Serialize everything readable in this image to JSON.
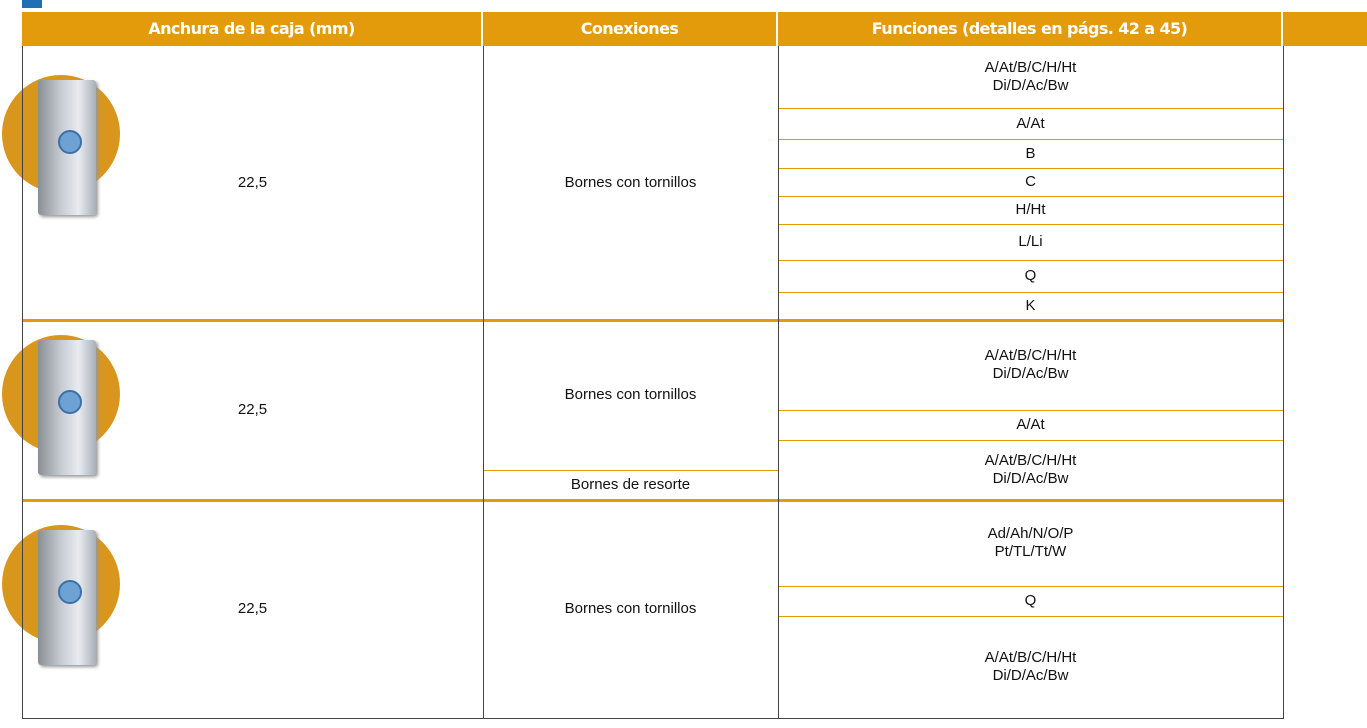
{
  "table": {
    "header": [
      "Anchura de la caja (mm)",
      "Conexiones",
      "Funciones (detalles en págs. 42 a 45)"
    ],
    "groups": [
      {
        "width": "22,5",
        "connections": [
          "Bornes con tornillos"
        ],
        "functions": [
          "A/At/B/C/H/Ht\nDi/D/Ac/Bw",
          "A/At",
          "B",
          "C",
          "H/Ht",
          "L/Li",
          "Q",
          "K"
        ]
      },
      {
        "width": "22,5",
        "connections": [
          "Bornes con tornillos",
          "Bornes de resorte"
        ],
        "functions": [
          "A/At/B/C/H/Ht\nDi/D/Ac/Bw",
          "A/At",
          "A/At/B/C/H/Ht\nDi/D/Ac/Bw"
        ]
      },
      {
        "width": "22,5",
        "connections": [
          "Bornes con tornillos"
        ],
        "functions": [
          "Ad/Ah/N/O/P\nPt/TL/Tt/W",
          "Q",
          "A/At/B/C/H/Ht\nDi/D/Ac/Bw"
        ]
      }
    ]
  }
}
